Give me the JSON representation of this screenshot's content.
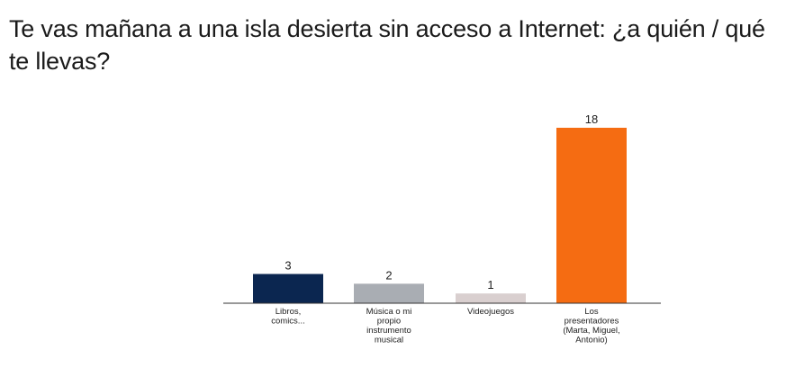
{
  "title": "Te vas mañana a una isla desierta sin acceso a Internet: ¿a quién / qué te llevas?",
  "chart_data": {
    "type": "bar",
    "title": "Te vas mañana a una isla desierta sin acceso a Internet: ¿a quién / qué te llevas?",
    "xlabel": "",
    "ylabel": "",
    "ylim": [
      0,
      18
    ],
    "grid": false,
    "categories": [
      [
        "Libros,",
        "comics..."
      ],
      [
        "Música o mi",
        "propio",
        "instrumento",
        "musical"
      ],
      [
        "Videojuegos"
      ],
      [
        "Los",
        "presentadores",
        "(Marta, Miguel,",
        "Antonio)"
      ]
    ],
    "values": [
      3,
      2,
      1,
      18
    ],
    "colors": [
      "#0b2650",
      "#a9adb3",
      "#d9cfcf",
      "#f56c12"
    ]
  }
}
